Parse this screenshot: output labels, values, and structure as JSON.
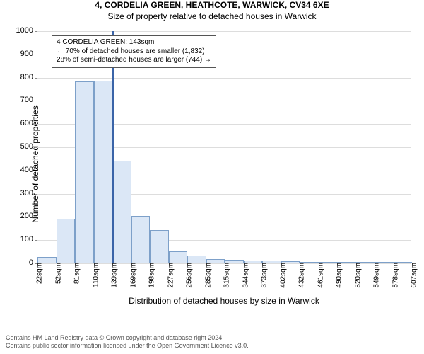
{
  "header": {
    "address_line": "4, CORDELIA GREEN, HEATHCOTE, WARWICK, CV34 6XE",
    "subtitle": "Size of property relative to detached houses in Warwick"
  },
  "chart": {
    "type": "histogram",
    "ylabel": "Number of detached properties",
    "xlabel": "Distribution of detached houses by size in Warwick",
    "ylim": [
      0,
      1000
    ],
    "ytick_step": 100,
    "background_color": "#ffffff",
    "grid_color": "#dddddd",
    "axis_color": "#888888",
    "bar_fill": "#dbe7f6",
    "bar_stroke": "#7da0c9",
    "marker_color": "#3a64a8",
    "label_fontsize": 12,
    "tick_fontsize": 11,
    "xtick_labels": [
      "22sqm",
      "52sqm",
      "81sqm",
      "110sqm",
      "139sqm",
      "169sqm",
      "198sqm",
      "227sqm",
      "256sqm",
      "285sqm",
      "315sqm",
      "344sqm",
      "373sqm",
      "402sqm",
      "432sqm",
      "461sqm",
      "490sqm",
      "520sqm",
      "549sqm",
      "578sqm",
      "607sqm"
    ],
    "bars": [
      25,
      190,
      780,
      785,
      440,
      200,
      140,
      50,
      30,
      15,
      12,
      10,
      8,
      5,
      4,
      3,
      3,
      2,
      2,
      2
    ],
    "marker_bin_index": 4,
    "annotation": {
      "line1": "4 CORDELIA GREEN: 143sqm",
      "line2": "← 70% of detached houses are smaller (1,832)",
      "line3": "28% of semi-detached houses are larger (744) →"
    }
  },
  "footer": {
    "line1": "Contains HM Land Registry data © Crown copyright and database right 2024.",
    "line2": "Contains public sector information licensed under the Open Government Licence v3.0."
  }
}
